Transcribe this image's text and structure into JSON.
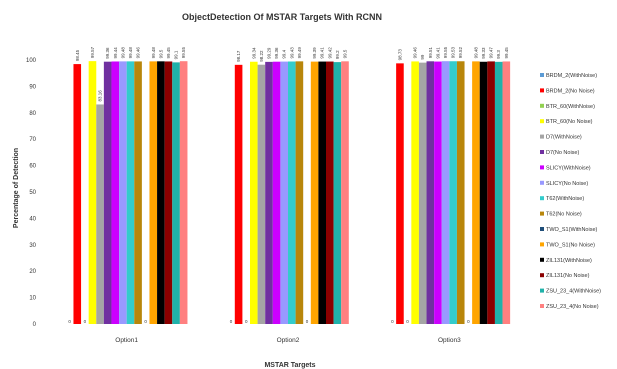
{
  "chart_data": {
    "type": "bar",
    "title": "ObjectDetection Of MSTAR Targets With RCNN",
    "xlabel": "MSTAR Targets",
    "ylabel": "Percentage of Detection",
    "ylim": [
      0,
      100
    ],
    "yticks": [
      0,
      10,
      20,
      30,
      40,
      50,
      60,
      70,
      80,
      90,
      100
    ],
    "categories": [
      "Option1",
      "Option2",
      "Option3"
    ],
    "legend_position": "right",
    "series": [
      {
        "name": "BRDM_2(WithNoise)",
        "color": "#5b9bd5",
        "values": [
          0,
          0,
          0
        ]
      },
      {
        "name": "BRDM_2(No Noise)",
        "color": "#ff0000",
        "values": [
          98.45,
          98.17,
          98.73
        ]
      },
      {
        "name": "BTR_60(WithNoise)",
        "color": "#92d050",
        "values": [
          0,
          0,
          0
        ]
      },
      {
        "name": "BTR_60(No Noise)",
        "color": "#ffff00",
        "values": [
          99.57,
          99.34,
          99.46
        ]
      },
      {
        "name": "D7(WithNoise)",
        "color": "#a5a5a5",
        "values": [
          83.16,
          98.22,
          99.0
        ]
      },
      {
        "name": "D7(No Noise)",
        "color": "#7030a0",
        "values": [
          99.36,
          99.29,
          99.51
        ]
      },
      {
        "name": "SLICY(WithNoise)",
        "color": "#cc00ff",
        "values": [
          99.44,
          99.36,
          99.41
        ]
      },
      {
        "name": "SLICY(No Noise)",
        "color": "#9999ff",
        "values": [
          99.48,
          99.4,
          99.55
        ]
      },
      {
        "name": "T62(WithNoise)",
        "color": "#33cccc",
        "values": [
          99.48,
          99.43,
          99.53
        ]
      },
      {
        "name": "T62(No Noise)",
        "color": "#b8860b",
        "values": [
          99.46,
          99.49,
          99.52
        ]
      },
      {
        "name": "TWO_S1(WithNoise)",
        "color": "#1f4e79",
        "values": [
          0,
          0,
          0
        ]
      },
      {
        "name": "TWO_S1(No Noise)",
        "color": "#ffa500",
        "values": [
          99.48,
          99.39,
          99.48
        ]
      },
      {
        "name": "ZIL131(WithNoise)",
        "color": "#000000",
        "values": [
          99.5,
          99.41,
          99.33
        ]
      },
      {
        "name": "ZIL131(No Noise)",
        "color": "#8b0000",
        "values": [
          99.45,
          99.42,
          99.47
        ]
      },
      {
        "name": "ZSU_23_4(WithNoise)",
        "color": "#20b2aa",
        "values": [
          99.1,
          99.2,
          99.3
        ]
      },
      {
        "name": "ZSU_23_4(No Noise)",
        "color": "#ff8080",
        "values": [
          99.55,
          99.5,
          99.45
        ]
      }
    ]
  }
}
